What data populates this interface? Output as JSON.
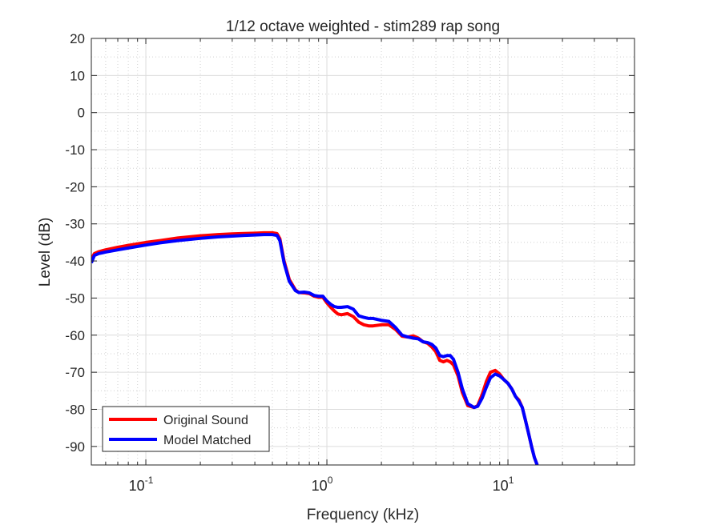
{
  "chart_data": {
    "type": "line",
    "title": "1/12 octave weighted - stim289 rap song",
    "xlabel": "Frequency (kHz)",
    "ylabel": "Level (dB)",
    "xscale": "log",
    "xlim": [
      0.05,
      50
    ],
    "ylim": [
      -95,
      20
    ],
    "grid": true,
    "minor_grid": true,
    "legend_position": "bottom-left",
    "x_tick_labels": [
      {
        "value": 0.1,
        "base": "10",
        "exp": "-1"
      },
      {
        "value": 1,
        "base": "10",
        "exp": "0"
      },
      {
        "value": 10,
        "base": "10",
        "exp": "1"
      }
    ],
    "y_ticks": [
      20,
      10,
      0,
      -10,
      -20,
      -30,
      -40,
      -50,
      -60,
      -70,
      -80,
      -90
    ],
    "series": [
      {
        "name": "Original Sound",
        "color": "#ff0000",
        "x": [
          0.05,
          0.052,
          0.055,
          0.06,
          0.07,
          0.08,
          0.1,
          0.12,
          0.15,
          0.2,
          0.25,
          0.3,
          0.35,
          0.4,
          0.45,
          0.5,
          0.53,
          0.55,
          0.58,
          0.62,
          0.67,
          0.7,
          0.75,
          0.8,
          0.85,
          0.9,
          0.95,
          1.0,
          1.05,
          1.1,
          1.15,
          1.2,
          1.3,
          1.4,
          1.5,
          1.6,
          1.7,
          1.8,
          2.0,
          2.2,
          2.4,
          2.6,
          2.8,
          3.0,
          3.2,
          3.4,
          3.6,
          3.8,
          4.0,
          4.2,
          4.4,
          4.6,
          4.8,
          5.0,
          5.3,
          5.6,
          6.0,
          6.5,
          6.8,
          7.2,
          7.6,
          8.0,
          8.5,
          9.0,
          9.5,
          10.0,
          10.5,
          11.0,
          11.5,
          12.0,
          12.5,
          13.0,
          13.5,
          14.0,
          14.5
        ],
        "y": [
          -39.5,
          -38,
          -37.5,
          -37,
          -36.3,
          -35.8,
          -35,
          -34.5,
          -33.8,
          -33.2,
          -32.9,
          -32.7,
          -32.6,
          -32.5,
          -32.4,
          -32.4,
          -32.6,
          -34,
          -40,
          -45,
          -47.8,
          -48.5,
          -48.6,
          -48.8,
          -49.5,
          -49.8,
          -49.8,
          -51.3,
          -52.5,
          -53.5,
          -54.3,
          -54.5,
          -54.2,
          -55,
          -56.5,
          -57.2,
          -57.5,
          -57.5,
          -57.2,
          -57.2,
          -58.5,
          -60.3,
          -60.5,
          -60.2,
          -60.8,
          -61.8,
          -62.2,
          -63.2,
          -64.5,
          -66.8,
          -67.2,
          -66.8,
          -67.2,
          -68,
          -71,
          -75.5,
          -79,
          -79.5,
          -79,
          -76,
          -72.5,
          -70,
          -69.5,
          -70.5,
          -72,
          -73,
          -74.5,
          -76.5,
          -77.5,
          -79.5,
          -83,
          -86.5,
          -90,
          -93,
          -95
        ]
      },
      {
        "name": "Model Matched",
        "color": "#0000ff",
        "x": [
          0.05,
          0.052,
          0.055,
          0.06,
          0.07,
          0.08,
          0.1,
          0.12,
          0.15,
          0.2,
          0.25,
          0.3,
          0.35,
          0.4,
          0.45,
          0.5,
          0.53,
          0.55,
          0.58,
          0.62,
          0.67,
          0.7,
          0.75,
          0.8,
          0.85,
          0.9,
          0.95,
          1.0,
          1.05,
          1.1,
          1.15,
          1.2,
          1.3,
          1.4,
          1.5,
          1.6,
          1.7,
          1.8,
          2.0,
          2.2,
          2.4,
          2.6,
          2.8,
          3.0,
          3.2,
          3.4,
          3.6,
          3.8,
          4.0,
          4.2,
          4.4,
          4.6,
          4.8,
          5.0,
          5.3,
          5.6,
          6.0,
          6.5,
          6.8,
          7.2,
          7.6,
          8.0,
          8.5,
          9.0,
          9.5,
          10.0,
          10.5,
          11.0,
          11.5,
          12.0,
          12.5,
          13.0,
          13.5,
          14.0,
          14.5
        ],
        "y": [
          -40.5,
          -38.5,
          -38,
          -37.6,
          -37,
          -36.5,
          -35.7,
          -35.1,
          -34.5,
          -33.9,
          -33.5,
          -33.3,
          -33.1,
          -33,
          -32.9,
          -32.9,
          -33.1,
          -34.5,
          -40.5,
          -45.5,
          -48,
          -48.5,
          -48.4,
          -48.6,
          -49.3,
          -49.5,
          -49.5,
          -50.8,
          -51.7,
          -52.3,
          -52.5,
          -52.5,
          -52.3,
          -53,
          -54.8,
          -55.2,
          -55.5,
          -55.5,
          -56,
          -56.3,
          -58,
          -60,
          -60.5,
          -60.8,
          -61,
          -61.8,
          -62,
          -62.5,
          -63.5,
          -65.5,
          -65.8,
          -65.5,
          -65.5,
          -66.5,
          -70,
          -74.5,
          -78.5,
          -79.5,
          -79.2,
          -77,
          -74,
          -71.5,
          -70.5,
          -71,
          -72,
          -73,
          -74.5,
          -76.5,
          -77.8,
          -79.5,
          -83,
          -86.5,
          -90,
          -93,
          -95
        ]
      }
    ]
  }
}
